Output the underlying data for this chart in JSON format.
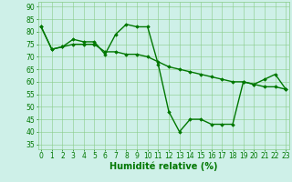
{
  "line1_x": [
    0,
    1,
    2,
    3,
    4,
    5,
    6,
    7,
    8,
    9,
    10,
    11,
    12,
    13,
    14,
    15,
    16,
    17,
    18,
    19,
    20,
    21,
    22,
    23
  ],
  "line1_y": [
    82,
    73,
    74,
    77,
    76,
    76,
    71,
    79,
    83,
    82,
    82,
    67,
    48,
    40,
    45,
    45,
    43,
    43,
    43,
    60,
    59,
    61,
    63,
    57
  ],
  "line2_x": [
    0,
    1,
    2,
    3,
    4,
    5,
    6,
    7,
    8,
    9,
    10,
    11,
    12,
    13,
    14,
    15,
    16,
    17,
    18,
    19,
    20,
    21,
    22,
    23
  ],
  "line2_y": [
    82,
    73,
    74,
    75,
    75,
    75,
    72,
    72,
    71,
    71,
    70,
    68,
    66,
    65,
    64,
    63,
    62,
    61,
    60,
    60,
    59,
    58,
    58,
    57
  ],
  "line_color": "#007700",
  "bg_color": "#cef0e8",
  "grid_color": "#88cc88",
  "xlabel": "Humidité relative (%)",
  "xlabel_color": "#007700",
  "xlabel_fontsize": 7,
  "yticks": [
    35,
    40,
    45,
    50,
    55,
    60,
    65,
    70,
    75,
    80,
    85,
    90
  ],
  "xticks": [
    0,
    1,
    2,
    3,
    4,
    5,
    6,
    7,
    8,
    9,
    10,
    11,
    12,
    13,
    14,
    15,
    16,
    17,
    18,
    19,
    20,
    21,
    22,
    23
  ],
  "ylim": [
    33,
    92
  ],
  "xlim": [
    -0.3,
    23.3
  ],
  "tick_color": "#007700",
  "tick_fontsize": 5.5,
  "marker": "D",
  "marker_size": 1.8,
  "line_width": 1.0
}
